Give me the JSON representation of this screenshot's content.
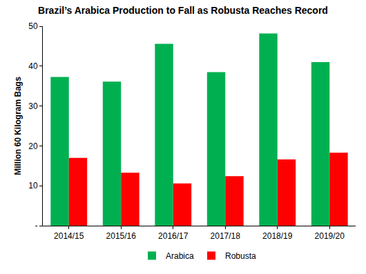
{
  "chart_data": {
    "type": "bar",
    "title": "Brazil’s Arabica Production to Fall as Robusta Reaches Record",
    "y_label": "Million 60 Kilogram Bags",
    "categories": [
      "2014/15",
      "2015/16",
      "2016/17",
      "2017/18",
      "2018/19",
      "2019/20"
    ],
    "series": [
      {
        "name": "Arabica",
        "color": "#00b050",
        "values": [
          37.3,
          36.1,
          45.6,
          38.5,
          48.2,
          41.0
        ]
      },
      {
        "name": "Robusta",
        "color": "#ff0000",
        "values": [
          17.0,
          13.3,
          10.6,
          12.4,
          16.6,
          18.3
        ]
      }
    ],
    "ylim": [
      0,
      50
    ],
    "yticks": [
      {
        "value": 0,
        "label": "-"
      },
      10,
      20,
      30,
      40,
      50
    ],
    "grid": false,
    "legend": "bottom"
  }
}
